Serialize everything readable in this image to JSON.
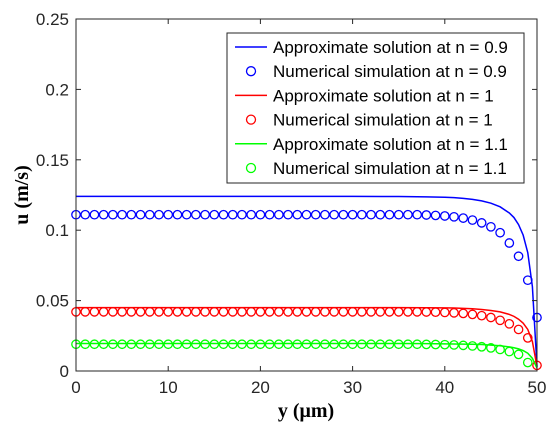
{
  "chart_data": {
    "type": "line",
    "xlabel": "y (μm)",
    "ylabel": "u (m/s)",
    "xlim": [
      0,
      50
    ],
    "ylim": [
      0,
      0.25
    ],
    "xticks": [
      "0",
      "10",
      "20",
      "30",
      "40",
      "50"
    ],
    "yticks": [
      "0",
      "0.05",
      "0.1",
      "0.15",
      "0.2",
      "0.25"
    ],
    "grid": false,
    "legend_position": "top-right",
    "series": [
      {
        "name": "Approximate solution at n = 0.9",
        "style": "line",
        "color": "#0000ff",
        "x": [
          0,
          5,
          10,
          15,
          20,
          25,
          30,
          35,
          38,
          40,
          41,
          42,
          43,
          44,
          45,
          46,
          47,
          47.5,
          48,
          48.5,
          49,
          49.5,
          50
        ],
        "y": [
          0.124,
          0.124,
          0.124,
          0.124,
          0.124,
          0.124,
          0.124,
          0.1239,
          0.1237,
          0.1234,
          0.1231,
          0.1226,
          0.1219,
          0.1208,
          0.1192,
          0.1166,
          0.1122,
          0.109,
          0.104,
          0.0965,
          0.084,
          0.06,
          0.003
        ]
      },
      {
        "name": "Numerical simulation at n = 0.9",
        "style": "markers",
        "color": "#0000ff",
        "x": [
          0,
          1,
          2,
          3,
          4,
          5,
          6,
          7,
          8,
          9,
          10,
          11,
          12,
          13,
          14,
          15,
          16,
          17,
          18,
          19,
          20,
          21,
          22,
          23,
          24,
          25,
          26,
          27,
          28,
          29,
          30,
          31,
          32,
          33,
          34,
          35,
          36,
          37,
          38,
          39,
          40,
          41,
          42,
          43,
          44,
          45,
          46,
          47,
          48,
          49,
          50
        ],
        "y": [
          0.111,
          0.111,
          0.111,
          0.111,
          0.111,
          0.111,
          0.111,
          0.111,
          0.111,
          0.111,
          0.111,
          0.111,
          0.111,
          0.111,
          0.111,
          0.111,
          0.111,
          0.111,
          0.111,
          0.111,
          0.111,
          0.111,
          0.111,
          0.111,
          0.111,
          0.111,
          0.111,
          0.111,
          0.111,
          0.111,
          0.111,
          0.111,
          0.111,
          0.111,
          0.111,
          0.111,
          0.111,
          0.111,
          0.1108,
          0.1105,
          0.1101,
          0.1095,
          0.1086,
          0.1072,
          0.1052,
          0.1024,
          0.0982,
          0.0909,
          0.0815,
          0.0645,
          0.038
        ]
      },
      {
        "name": "Approximate solution at n = 1",
        "style": "line",
        "color": "#ff0000",
        "x": [
          0,
          5,
          10,
          15,
          20,
          25,
          30,
          35,
          38,
          40,
          41,
          42,
          43,
          44,
          45,
          46,
          47,
          47.5,
          48,
          48.5,
          49,
          49.5,
          50
        ],
        "y": [
          0.045,
          0.045,
          0.045,
          0.045,
          0.045,
          0.045,
          0.045,
          0.045,
          0.0449,
          0.0448,
          0.0447,
          0.0445,
          0.0442,
          0.0437,
          0.043,
          0.042,
          0.0402,
          0.0388,
          0.0368,
          0.034,
          0.0295,
          0.021,
          0.003
        ]
      },
      {
        "name": "Numerical simulation at n = 1",
        "style": "markers",
        "color": "#ff0000",
        "x": [
          0,
          1,
          2,
          3,
          4,
          5,
          6,
          7,
          8,
          9,
          10,
          11,
          12,
          13,
          14,
          15,
          16,
          17,
          18,
          19,
          20,
          21,
          22,
          23,
          24,
          25,
          26,
          27,
          28,
          29,
          30,
          31,
          32,
          33,
          34,
          35,
          36,
          37,
          38,
          39,
          40,
          41,
          42,
          43,
          44,
          45,
          46,
          47,
          48,
          49,
          50
        ],
        "y": [
          0.042,
          0.042,
          0.042,
          0.042,
          0.042,
          0.042,
          0.042,
          0.042,
          0.042,
          0.042,
          0.042,
          0.042,
          0.042,
          0.042,
          0.042,
          0.042,
          0.042,
          0.042,
          0.042,
          0.042,
          0.042,
          0.042,
          0.042,
          0.042,
          0.042,
          0.042,
          0.042,
          0.042,
          0.042,
          0.042,
          0.042,
          0.042,
          0.042,
          0.042,
          0.042,
          0.042,
          0.042,
          0.042,
          0.0419,
          0.0418,
          0.0416,
          0.0413,
          0.0409,
          0.0402,
          0.0393,
          0.038,
          0.036,
          0.0335,
          0.0295,
          0.0235,
          0.004
        ]
      },
      {
        "name": "Approximate solution at n = 1.1",
        "style": "line",
        "color": "#00ff00",
        "x": [
          0,
          5,
          10,
          15,
          20,
          25,
          30,
          35,
          38,
          40,
          41,
          42,
          43,
          44,
          45,
          46,
          47,
          47.5,
          48,
          48.5,
          49,
          49.5,
          50
        ],
        "y": [
          0.0195,
          0.0195,
          0.0195,
          0.0195,
          0.0195,
          0.0195,
          0.0195,
          0.0195,
          0.0194,
          0.0193,
          0.0192,
          0.0191,
          0.019,
          0.0188,
          0.0184,
          0.0179,
          0.0171,
          0.0165,
          0.0157,
          0.0145,
          0.0126,
          0.009,
          0.002
        ]
      },
      {
        "name": "Numerical simulation at n = 1.1",
        "style": "markers",
        "color": "#00ff00",
        "x": [
          0,
          1,
          2,
          3,
          4,
          5,
          6,
          7,
          8,
          9,
          10,
          11,
          12,
          13,
          14,
          15,
          16,
          17,
          18,
          19,
          20,
          21,
          22,
          23,
          24,
          25,
          26,
          27,
          28,
          29,
          30,
          31,
          32,
          33,
          34,
          35,
          36,
          37,
          38,
          39,
          40,
          41,
          42,
          43,
          44,
          45,
          46,
          47,
          48,
          49
        ],
        "y": [
          0.019,
          0.019,
          0.019,
          0.019,
          0.019,
          0.019,
          0.019,
          0.019,
          0.019,
          0.019,
          0.019,
          0.019,
          0.019,
          0.019,
          0.019,
          0.019,
          0.019,
          0.019,
          0.019,
          0.019,
          0.019,
          0.019,
          0.019,
          0.019,
          0.019,
          0.019,
          0.019,
          0.019,
          0.019,
          0.019,
          0.019,
          0.019,
          0.019,
          0.019,
          0.019,
          0.019,
          0.019,
          0.019,
          0.0189,
          0.0188,
          0.0187,
          0.0185,
          0.0182,
          0.0178,
          0.0172,
          0.0164,
          0.0153,
          0.0138,
          0.0118,
          0.006
        ]
      }
    ]
  }
}
